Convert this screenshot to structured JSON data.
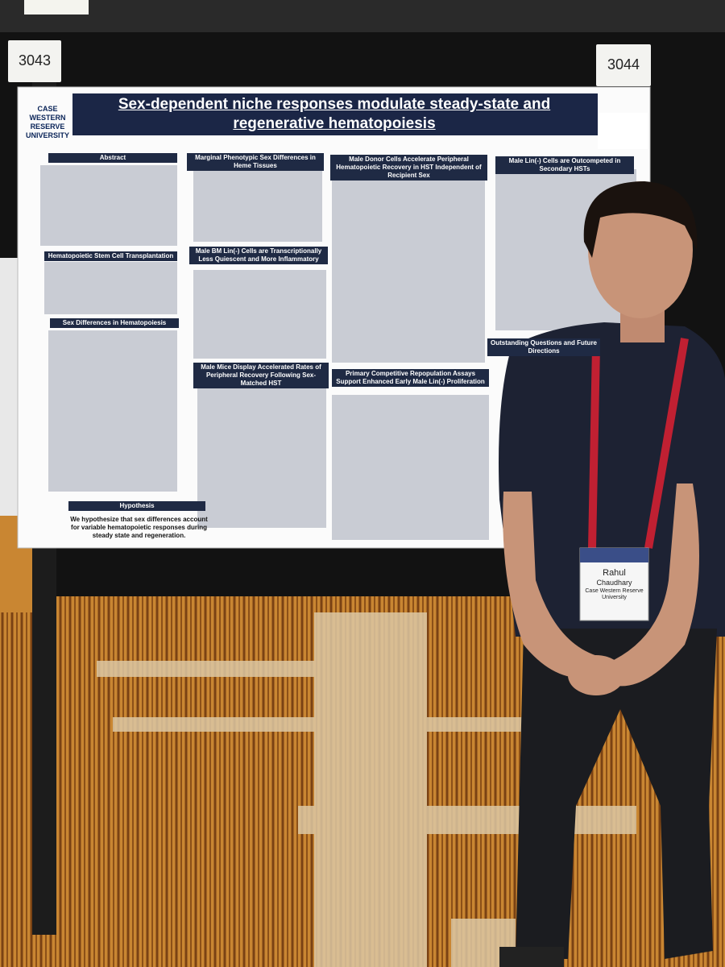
{
  "booth_numbers": [
    "3043",
    "3044"
  ],
  "poster": {
    "logo": "CASE WESTERN RESERVE UNIVERSITY",
    "title": "Sex-dependent niche responses modulate steady-state and regenerative hematopoiesis",
    "sections": [
      "Abstract",
      "Marginal Phenotypic Sex Differences in Heme Tissues",
      "Male Donor Cells Accelerate Peripheral Hematopoietic Recovery in HST Independent of Recipient Sex",
      "Male Lin(-) Cells are Outcompeted in Secondary HSTs",
      "Hematopoietic Stem Cell Transplantation",
      "Male BM Lin(-) Cells are Transcriptionally Less Quiescent and More Inflammatory",
      "Sex Differences in Hematopoiesis",
      "Male Mice Display Accelerated Rates of Peripheral Recovery Following Sex-Matched HST",
      "Primary Competitive Repopulation Assays Support Enhanced Early Male Lin(-) Proliferation",
      "Outstanding Questions and Future Directions",
      "Hypothesis"
    ],
    "hypothesis_text": "We hypothesize that sex differences account for variable hematopoietic responses during steady state and regeneration."
  },
  "badge": {
    "first_name": "Rahul",
    "last_name": "Chaudhary",
    "affiliation": "Case Western Reserve University"
  }
}
